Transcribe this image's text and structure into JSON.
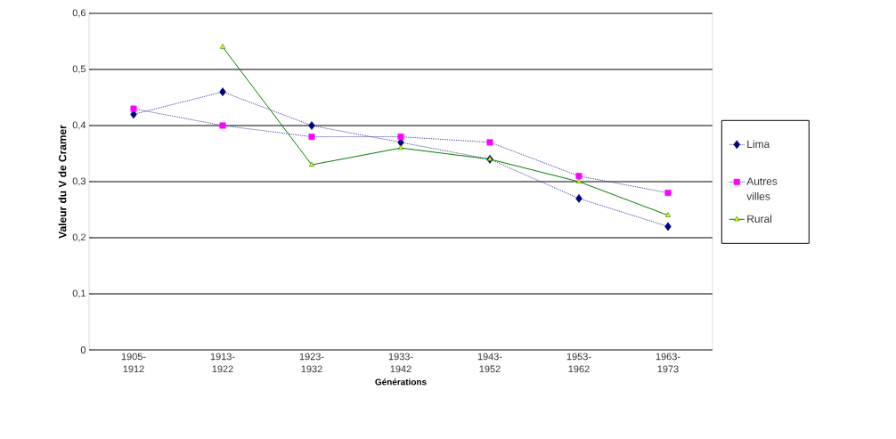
{
  "chart_data": {
    "type": "line",
    "xlabel": "Générations",
    "ylabel": "Valeur du V de Cramer",
    "categories": [
      "1905-1912",
      "1913-1922",
      "1923-1932",
      "1933-1942",
      "1943-1952",
      "1953-1962",
      "1963-1973"
    ],
    "series": [
      {
        "name": "Lima",
        "color": "#000080",
        "marker": "diamond",
        "line_style": "dotted",
        "values": [
          0.42,
          0.46,
          0.4,
          0.37,
          0.34,
          0.27,
          0.22
        ]
      },
      {
        "name": "Autres villes",
        "color": "#ff00ff",
        "marker": "square",
        "line_style": "dotted",
        "values": [
          0.43,
          0.4,
          0.38,
          0.38,
          0.37,
          0.31,
          0.28
        ]
      },
      {
        "name": "Rural",
        "color": "#008000",
        "marker": "triangle",
        "line_style": "solid",
        "values": [
          null,
          0.54,
          0.33,
          0.36,
          0.34,
          0.3,
          0.24
        ]
      }
    ],
    "ylim": [
      0,
      0.6
    ],
    "yticks": [
      {
        "value": 0,
        "label": "0"
      },
      {
        "value": 0.1,
        "label": "0,1"
      },
      {
        "value": 0.2,
        "label": "0,2"
      },
      {
        "value": 0.3,
        "label": "0,3"
      },
      {
        "value": 0.4,
        "label": "0,4"
      },
      {
        "value": 0.5,
        "label": "0,5"
      },
      {
        "value": 0.6,
        "label": "0,6"
      }
    ],
    "grid": "y",
    "legend": "right"
  }
}
